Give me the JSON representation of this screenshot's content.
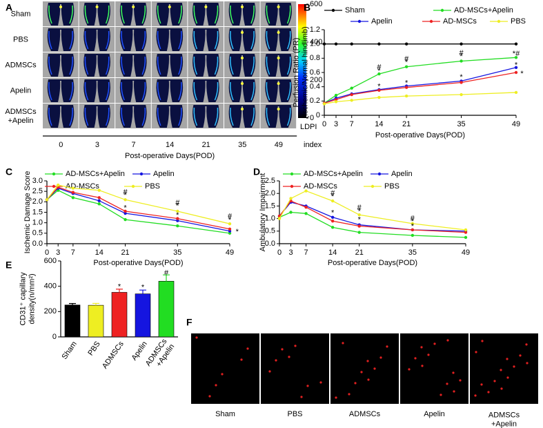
{
  "chart_data": [
    {
      "type": "images",
      "label": "A",
      "rows": [
        "Sham",
        "PBS",
        "ADMSCs",
        "Apelin",
        "ADMSCs\n+Apelin"
      ],
      "categories": [
        "0",
        "3",
        "7",
        "14",
        "21",
        "35",
        "49"
      ],
      "xlabel": "Post-operative Days(POD)",
      "colorbar_label": [
        "LDPI",
        "index"
      ],
      "clim": [
        0,
        600
      ],
      "cticks": [
        0,
        200,
        400,
        600
      ]
    },
    {
      "type": "line",
      "label": "B",
      "ylabel": "Perfusion Ratio (PR)\n(Ischemic/Normal hindlimb)",
      "xlabel": "Post-operative Days(POD)",
      "x": [
        0,
        3,
        7,
        14,
        21,
        35,
        49
      ],
      "xlim": [
        0,
        49
      ],
      "xticks": [
        0,
        3,
        7,
        14,
        21,
        35,
        49
      ],
      "ylim": [
        0,
        1.2
      ],
      "yticks": [
        0,
        0.2,
        0.4,
        0.6,
        0.8,
        {
          "value": 1,
          "label": "1.0"
        },
        1.2
      ],
      "series": [
        {
          "name": "Sham",
          "color": "#000000",
          "values": [
            1.0,
            1.0,
            1.0,
            1.0,
            1.0,
            1.0,
            1.0
          ]
        },
        {
          "name": "AD-MSCs+Apelin",
          "color": "#22dd22",
          "values": [
            0.17,
            0.28,
            0.38,
            0.58,
            0.68,
            0.76,
            0.81
          ]
        },
        {
          "name": "Apelin",
          "color": "#1515e0",
          "values": [
            0.17,
            0.24,
            0.3,
            0.36,
            0.41,
            0.48,
            0.67
          ]
        },
        {
          "name": "AD-MSCs",
          "color": "#ee2222",
          "values": [
            0.17,
            0.22,
            0.29,
            0.35,
            0.39,
            0.46,
            0.6
          ]
        },
        {
          "name": "PBS",
          "color": "#eeee22",
          "values": [
            0.16,
            0.19,
            0.21,
            0.25,
            0.27,
            0.29,
            0.32
          ]
        }
      ],
      "annotations": [
        {
          "text": "#",
          "x": 14,
          "y": 0.67
        },
        {
          "text": "*",
          "x": 14,
          "y": 0.62
        },
        {
          "text": "*",
          "x": 14,
          "y": 0.4
        },
        {
          "text": "#",
          "x": 21,
          "y": 0.79
        },
        {
          "text": "*",
          "x": 21,
          "y": 0.74
        },
        {
          "text": "*",
          "x": 21,
          "y": 0.45
        },
        {
          "text": "#",
          "x": 35,
          "y": 0.87
        },
        {
          "text": "*",
          "x": 35,
          "y": 0.82
        },
        {
          "text": "*",
          "x": 35,
          "y": 0.53
        },
        {
          "text": "*#",
          "x": 49,
          "y": 0.86
        },
        {
          "text": "*",
          "x": 49,
          "y": 0.7
        },
        {
          "text": "*",
          "x": 50.5,
          "y": 0.58
        }
      ]
    },
    {
      "type": "line",
      "label": "C",
      "ylabel": "Ischemic Damage Score",
      "xlabel": "Post-operative Days(POD)",
      "x": [
        0,
        3,
        7,
        14,
        21,
        35,
        49
      ],
      "xlim": [
        0,
        49
      ],
      "xticks": [
        0,
        3,
        7,
        14,
        21,
        35,
        49
      ],
      "ylim": [
        0,
        3
      ],
      "yticks": [
        {
          "value": 0,
          "label": "0.0"
        },
        0.5,
        {
          "value": 1,
          "label": "1.0"
        },
        1.5,
        {
          "value": 2,
          "label": "2.0"
        },
        2.5,
        {
          "value": 3,
          "label": "3.0"
        }
      ],
      "series": [
        {
          "name": "AD-MSCs+Apelin",
          "color": "#22dd22",
          "values": [
            2.1,
            2.55,
            2.2,
            1.9,
            1.15,
            0.85,
            0.5
          ]
        },
        {
          "name": "Apelin",
          "color": "#1515e0",
          "values": [
            2.1,
            2.65,
            2.4,
            2.05,
            1.45,
            1.1,
            0.6
          ]
        },
        {
          "name": "AD-MSCs",
          "color": "#ee2222",
          "values": [
            2.1,
            2.7,
            2.45,
            2.2,
            1.55,
            1.2,
            0.7
          ]
        },
        {
          "name": "PBS",
          "color": "#eeee22",
          "values": [
            2.1,
            2.8,
            2.65,
            2.55,
            2.1,
            1.55,
            0.95
          ]
        }
      ],
      "annotations": [
        {
          "text": "#",
          "x": 21,
          "y": 2.45
        },
        {
          "text": "*",
          "x": 21,
          "y": 2.3
        },
        {
          "text": "*",
          "x": 21,
          "y": 1.7
        },
        {
          "text": "#",
          "x": 35,
          "y": 1.95
        },
        {
          "text": "*",
          "x": 35,
          "y": 1.8
        },
        {
          "text": "*",
          "x": 35,
          "y": 1.35
        },
        {
          "text": "#",
          "x": 49,
          "y": 1.3
        },
        {
          "text": "*",
          "x": 49,
          "y": 1.12
        },
        {
          "text": "*",
          "x": 51,
          "y": 0.55
        }
      ]
    },
    {
      "type": "line",
      "label": "D",
      "ylabel": "Ambulatory Impairment",
      "xlabel": "Post-operative Days(POD)",
      "x": [
        0,
        3,
        7,
        14,
        21,
        35,
        49
      ],
      "xlim": [
        0,
        49
      ],
      "xticks": [
        0,
        3,
        7,
        14,
        21,
        35,
        49
      ],
      "ylim": [
        0,
        2.5
      ],
      "yticks": [
        {
          "value": 0,
          "label": "0.0"
        },
        0.5,
        {
          "value": 1,
          "label": "1.0"
        },
        1.5,
        {
          "value": 2,
          "label": "2.0"
        },
        2.5
      ],
      "series": [
        {
          "name": "AD-MSCs+Apelin",
          "color": "#22dd22",
          "values": [
            1.05,
            1.25,
            1.2,
            0.65,
            0.45,
            0.33,
            0.25
          ]
        },
        {
          "name": "Apelin",
          "color": "#1515e0",
          "values": [
            1.1,
            1.65,
            1.5,
            1.05,
            0.75,
            0.55,
            0.5
          ]
        },
        {
          "name": "AD-MSCs",
          "color": "#ee2222",
          "values": [
            1.1,
            1.7,
            1.45,
            0.9,
            0.7,
            0.55,
            0.45
          ]
        },
        {
          "name": "PBS",
          "color": "#eeee22",
          "values": [
            1.0,
            1.8,
            2.1,
            1.7,
            1.15,
            0.8,
            0.55
          ]
        }
      ],
      "annotations": [
        {
          "text": "#",
          "x": 14,
          "y": 2.0
        },
        {
          "text": "*",
          "x": 14,
          "y": 1.86
        },
        {
          "text": "*",
          "x": 14,
          "y": 1.22
        },
        {
          "text": "#",
          "x": 21,
          "y": 1.42
        },
        {
          "text": "*",
          "x": 21,
          "y": 1.28
        },
        {
          "text": "*",
          "x": 21,
          "y": 0.95
        },
        {
          "text": "#",
          "x": 35,
          "y": 1.0
        },
        {
          "text": "*",
          "x": 35,
          "y": 0.87
        },
        {
          "text": "*",
          "x": 35,
          "y": 0.68
        }
      ]
    },
    {
      "type": "bar",
      "label": "E",
      "ylabel": "CD31⁺ capillary\ndensity(n/mm²)",
      "categories": [
        "Sham",
        "PBS",
        "ADMSCs",
        "Apelin",
        "ADMSCs\n+Apelin"
      ],
      "values": [
        252,
        250,
        352,
        340,
        440
      ],
      "errors": [
        12,
        15,
        25,
        30,
        50
      ],
      "colors": [
        "#000000",
        "#eeee22",
        "#ee2222",
        "#1515e0",
        "#22dd22"
      ],
      "ylim": [
        0,
        600
      ],
      "yticks": [
        0,
        200,
        400,
        600
      ],
      "annotations": [
        {
          "text": "*",
          "category": "ADMSCs",
          "y": 395
        },
        {
          "text": "*",
          "category": "Apelin",
          "y": 390
        },
        {
          "text": "#",
          "category": "ADMSCs\n+Apelin",
          "y": 505
        }
      ]
    },
    {
      "type": "images",
      "label": "F",
      "categories": [
        "Sham",
        "PBS",
        "ADMSCs",
        "Apelin",
        "ADMSCs\n+Apelin"
      ]
    }
  ]
}
